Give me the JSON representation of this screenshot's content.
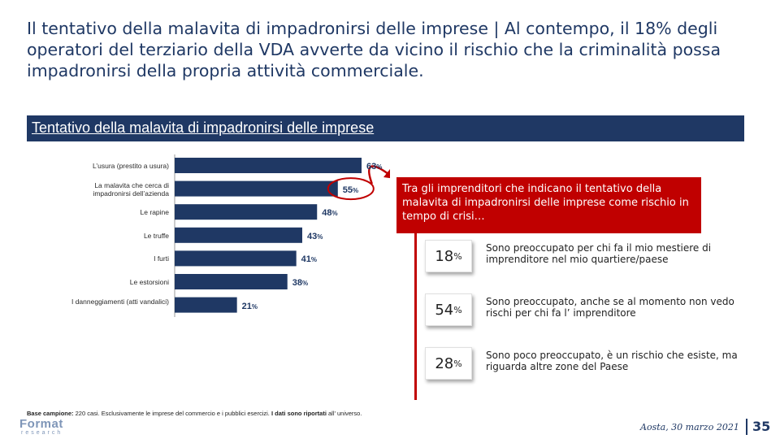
{
  "slide": {
    "title": "Il tentativo della malavita di impadronirsi delle imprese | Al contempo, il 18% degli operatori del terziario della VDA avverte da vicino il rischio che la criminalità possa impadronirsi della propria attività commerciale.",
    "banner": "Tentativo della malavita di impadronirsi delle imprese",
    "callout": "Tra gli imprenditori che indicano il tentativo della malavita di impadronirsi delle imprese come rischio in tempo di crisi…",
    "stats": [
      {
        "value": "18",
        "sign": "%",
        "text": "Sono preoccupato per chi fa il mio mestiere di imprenditore nel mio quartiere/paese"
      },
      {
        "value": "54",
        "sign": "%",
        "text": "Sono preoccupato, anche se al momento non vedo rischi per chi fa l’ imprenditore"
      },
      {
        "value": "28",
        "sign": "%",
        "text": "Sono poco preoccupato, è un rischio che esiste, ma riguarda altre zone del Paese"
      }
    ],
    "footer": {
      "base_label": "Base campione:",
      "base_text": "220 casi. Esclusivamente le imprese del commercio e i pubblici esercizi.",
      "bold_text": "I dati sono riportati",
      "tail": "all’ universo.",
      "logo": "Format",
      "logo_sub": "research",
      "date": "Aosta, 30 marzo 2021",
      "page": "35"
    }
  },
  "colors": {
    "navy": "#1f3864",
    "red": "#c00000"
  },
  "chart_data": {
    "type": "bar",
    "orientation": "horizontal",
    "title": "Tentativo della malavita di impadronirsi delle imprese",
    "categories": [
      "L’usura (prestito a usura)",
      "La malavita che cerca di impadronirsi dell’azienda",
      "Le rapine",
      "Le truffe",
      "I furti",
      "Le estorsioni",
      "I danneggiamenti (atti vandalici)"
    ],
    "values": [
      63,
      55,
      48,
      43,
      41,
      38,
      21
    ],
    "unit": "%",
    "xlim": [
      0,
      63
    ]
  }
}
